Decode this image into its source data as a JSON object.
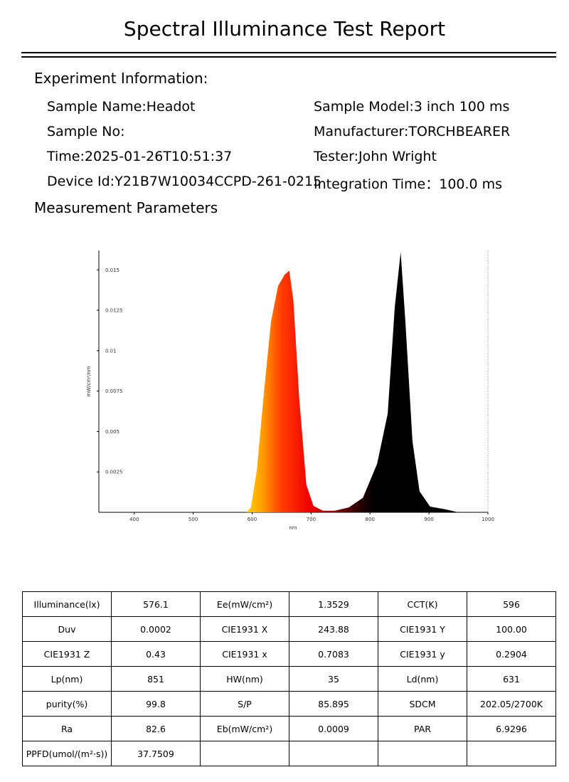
{
  "header": {
    "title": "Spectral Illuminance Test Report"
  },
  "experiment": {
    "heading": "Experiment Information:",
    "rows": [
      [
        "Sample Name:Headot",
        "Sample Model:3 inch 100 ms"
      ],
      [
        "Sample No:",
        "Manufacturer:TORCHBEARER"
      ],
      [
        "Time:2025-01-26T10:51:37",
        "Tester:John Wright"
      ],
      [
        "Device Id:Y21B7W10034CCPD-261-0215",
        "Integration Time：100.0 ms"
      ]
    ]
  },
  "measurement": {
    "heading": "Measurement Parameters"
  },
  "chart_data": {
    "type": "area",
    "x_label": "nm",
    "y_label": "mW/cm²/nm",
    "x": [
      590,
      598,
      608,
      620,
      632,
      644,
      655,
      663,
      670,
      680,
      692,
      704,
      720,
      740,
      764,
      788,
      812,
      830,
      842,
      852,
      860,
      872,
      884,
      902,
      926,
      950
    ],
    "values": [
      0,
      0.0003,
      0.0026,
      0.0074,
      0.0118,
      0.014,
      0.0147,
      0.01495,
      0.0131,
      0.007,
      0.0017,
      0.0004,
      0.0001,
      0.0001,
      0.0003,
      0.0009,
      0.003,
      0.0061,
      0.0127,
      0.0161,
      0.0118,
      0.0044,
      0.0013,
      0.00035,
      0.0002,
      0
    ],
    "xlim": [
      340,
      1000
    ],
    "ylim": [
      0,
      0.0162
    ],
    "xticks": [
      400,
      500,
      600,
      700,
      800,
      900,
      1000
    ],
    "yticks": [
      0.0025,
      0.005,
      0.0075,
      0.01,
      0.0125,
      0.015
    ]
  },
  "table": {
    "rows": [
      [
        "Illuminance(lx)",
        "576.1",
        "Ee(mW/cm²)",
        "1.3529",
        "CCT(K)",
        "596"
      ],
      [
        "Duv",
        "0.0002",
        "CIE1931 X",
        "243.88",
        "CIE1931 Y",
        "100.00"
      ],
      [
        "CIE1931 Z",
        "0.43",
        "CIE1931 x",
        "0.7083",
        "CIE1931 y",
        "0.2904"
      ],
      [
        "Lp(nm)",
        "851",
        "HW(nm)",
        "35",
        "Ld(nm)",
        "631"
      ],
      [
        "purity(%)",
        "99.8",
        "S/P",
        "85.895",
        "SDCM",
        "202.05/2700K"
      ],
      [
        "Ra",
        "82.6",
        "Eb(mW/cm²)",
        "0.0009",
        "PAR",
        "6.9296"
      ],
      [
        "PPFD(umol/(m²·s))",
        "37.7509"
      ]
    ]
  }
}
